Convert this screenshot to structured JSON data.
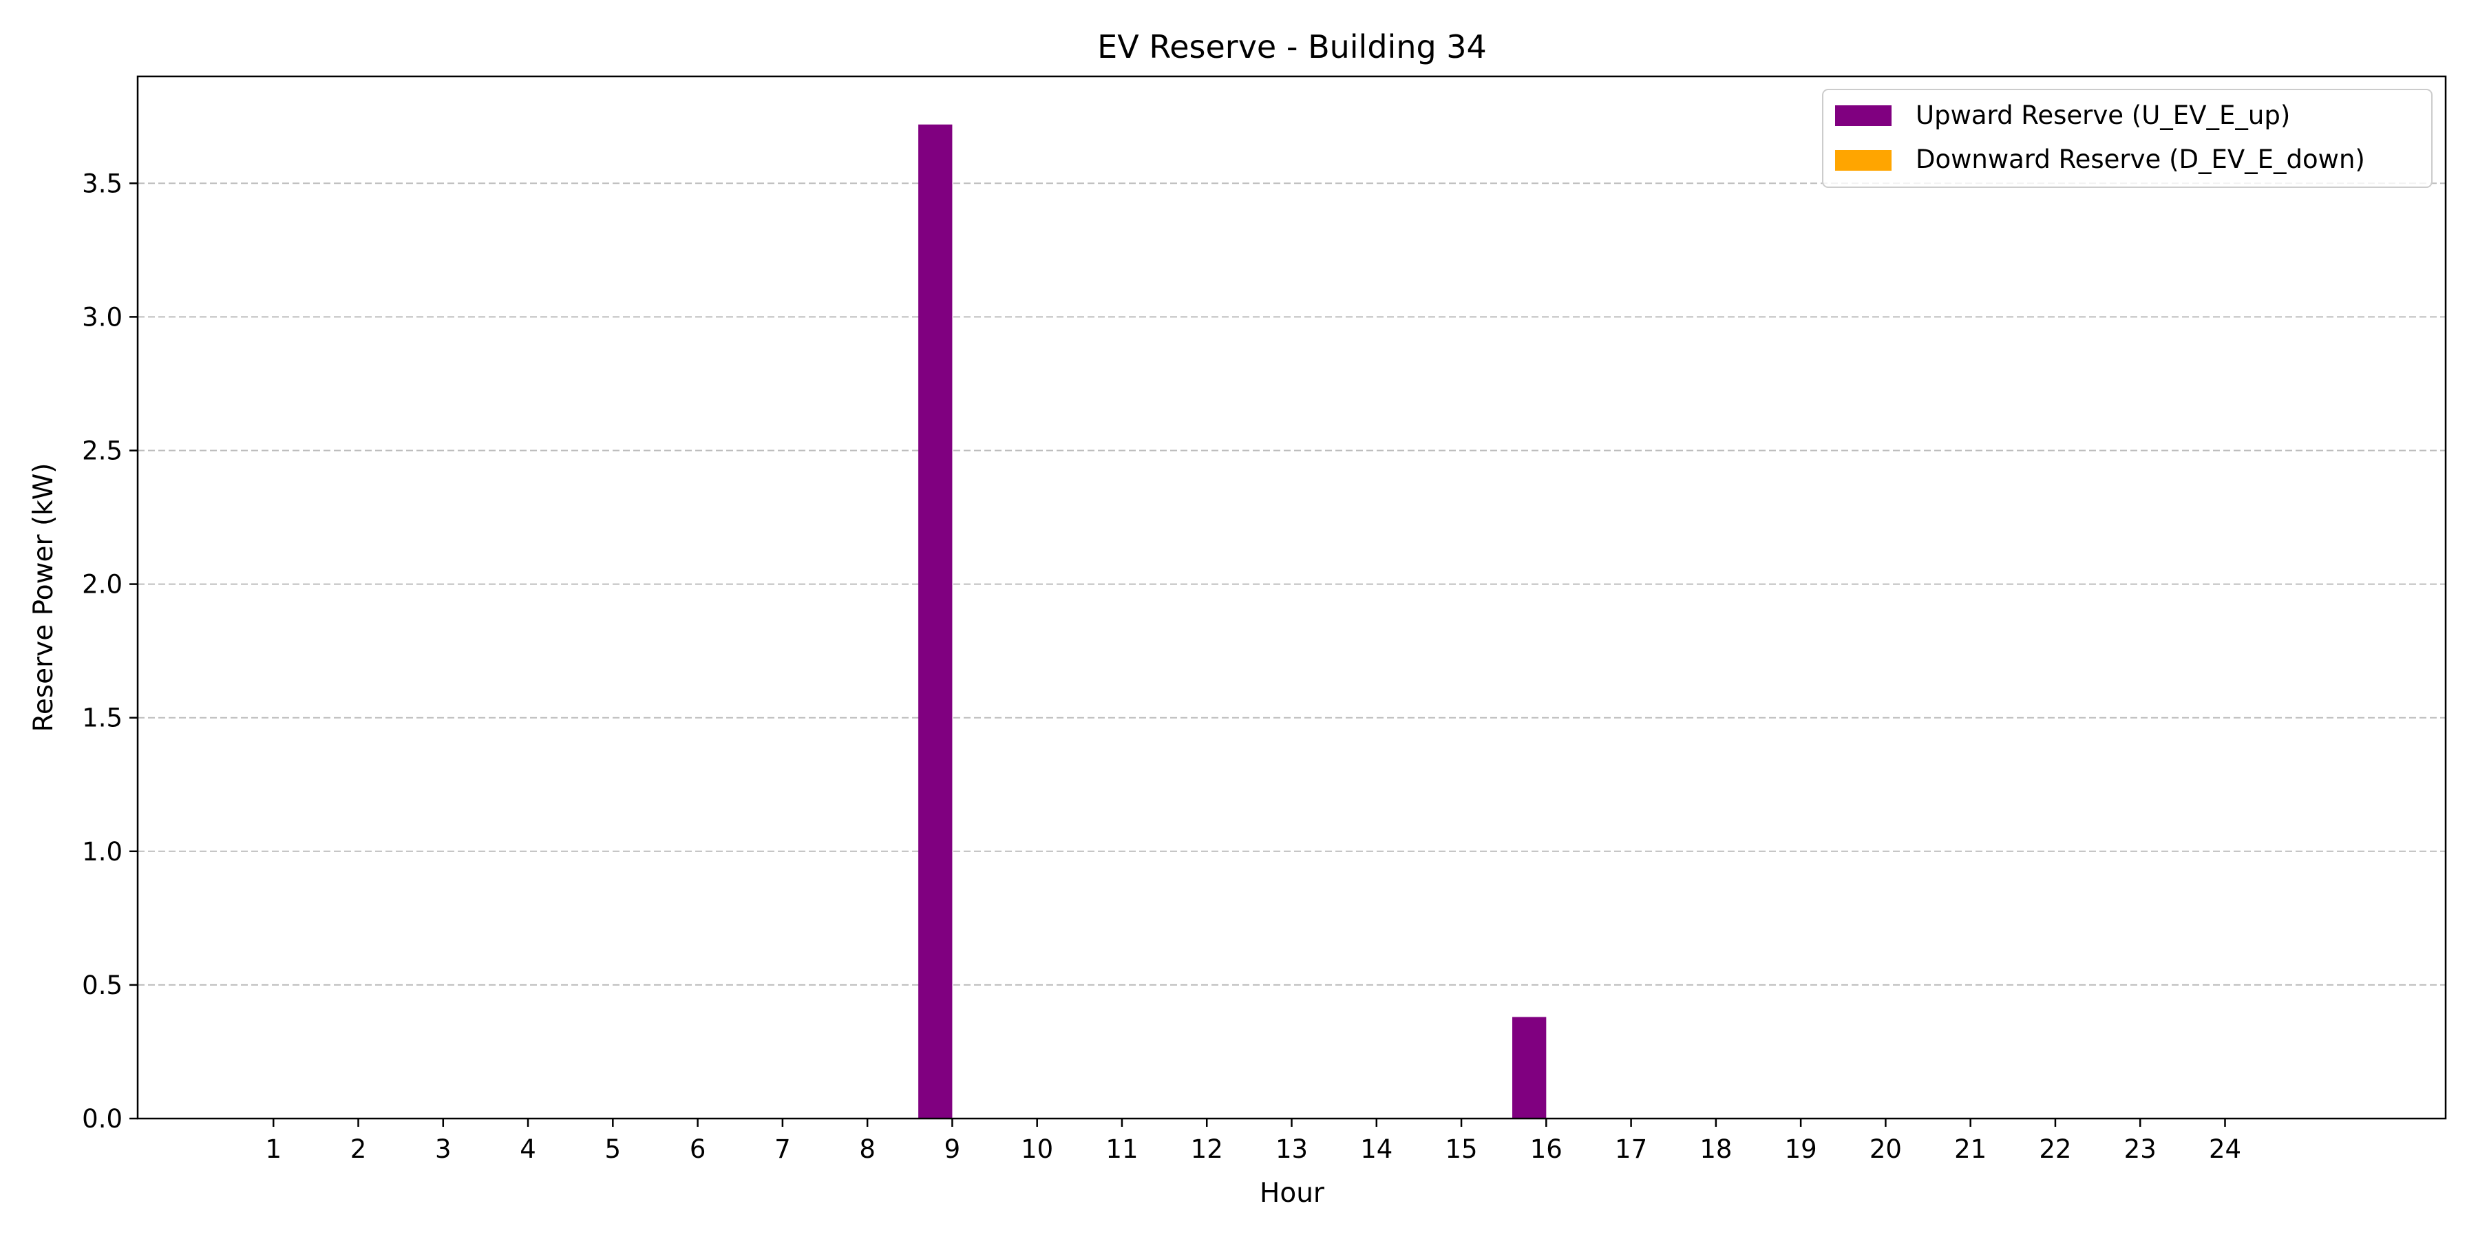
{
  "chart_data": {
    "type": "bar",
    "title": "EV Reserve - Building 34",
    "xlabel": "Hour",
    "ylabel": "Reserve Power (kW)",
    "categories": [
      "1",
      "2",
      "3",
      "4",
      "5",
      "6",
      "7",
      "8",
      "9",
      "10",
      "11",
      "12",
      "13",
      "14",
      "15",
      "16",
      "17",
      "18",
      "19",
      "20",
      "21",
      "22",
      "23",
      "24"
    ],
    "x": [
      1,
      2,
      3,
      4,
      5,
      6,
      7,
      8,
      9,
      10,
      11,
      12,
      13,
      14,
      15,
      16,
      17,
      18,
      19,
      20,
      21,
      22,
      23,
      24
    ],
    "xlim": [
      -0.6,
      26.6
    ],
    "ylim": [
      0,
      3.9
    ],
    "yticks": [
      0.0,
      0.5,
      1.0,
      1.5,
      2.0,
      2.5,
      3.0,
      3.5
    ],
    "ytick_labels": [
      "0.0",
      "0.5",
      "1.0",
      "1.5",
      "2.0",
      "2.5",
      "3.0",
      "3.5"
    ],
    "grid": "horizontal dashed",
    "legend_position": "top-right",
    "series": [
      {
        "name": "Upward Reserve (U_EV_E_up)",
        "color": "#800080",
        "values": [
          0,
          0,
          0,
          0,
          0,
          0,
          0,
          0,
          3.72,
          0,
          0,
          0,
          0,
          0,
          0,
          0.38,
          0,
          0,
          0,
          0,
          0,
          0,
          0,
          0
        ]
      },
      {
        "name": "Downward Reserve (D_EV_E_down)",
        "color": "#FFA500",
        "values": [
          0,
          0,
          0,
          0,
          0,
          0,
          0,
          0,
          0,
          0,
          0,
          0,
          0,
          0,
          0,
          0,
          0,
          0,
          0,
          0,
          0,
          0,
          0,
          0
        ]
      }
    ]
  }
}
